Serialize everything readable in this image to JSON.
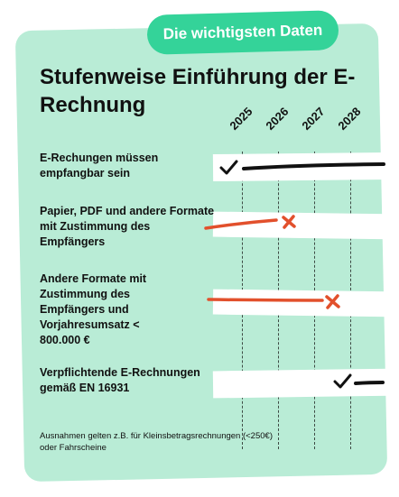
{
  "badge": "Die wichtigsten Daten",
  "title": "Stufenweise Einführung der E-Rechnung",
  "years": [
    "2025",
    "2026",
    "2027",
    "2028"
  ],
  "rows": [
    {
      "label": "E-Rechungen müssen empfangbar sein",
      "status": "check",
      "line_color": "#111111"
    },
    {
      "label": "Papier, PDF und andere Formate mit Zustimmung des Empfängers",
      "status": "cross",
      "line_color": "#e2502c"
    },
    {
      "label": "Andere Formate mit Zustimmung des Empfängers und Vorjahresumsatz < 800.000 €",
      "status": "cross",
      "line_color": "#e2502c"
    },
    {
      "label": "Verpflichtende E-Rechnungen gemäß EN 16931",
      "status": "check",
      "line_color": "#111111"
    }
  ],
  "footnote": "Ausnahmen gelten z.B. für Kleinsbetragsrechnungen (<250€) oder Fahrscheine",
  "colors": {
    "card": "#b9ecd6",
    "badge": "#34d399",
    "accent_red": "#e2502c",
    "ink": "#111111"
  }
}
